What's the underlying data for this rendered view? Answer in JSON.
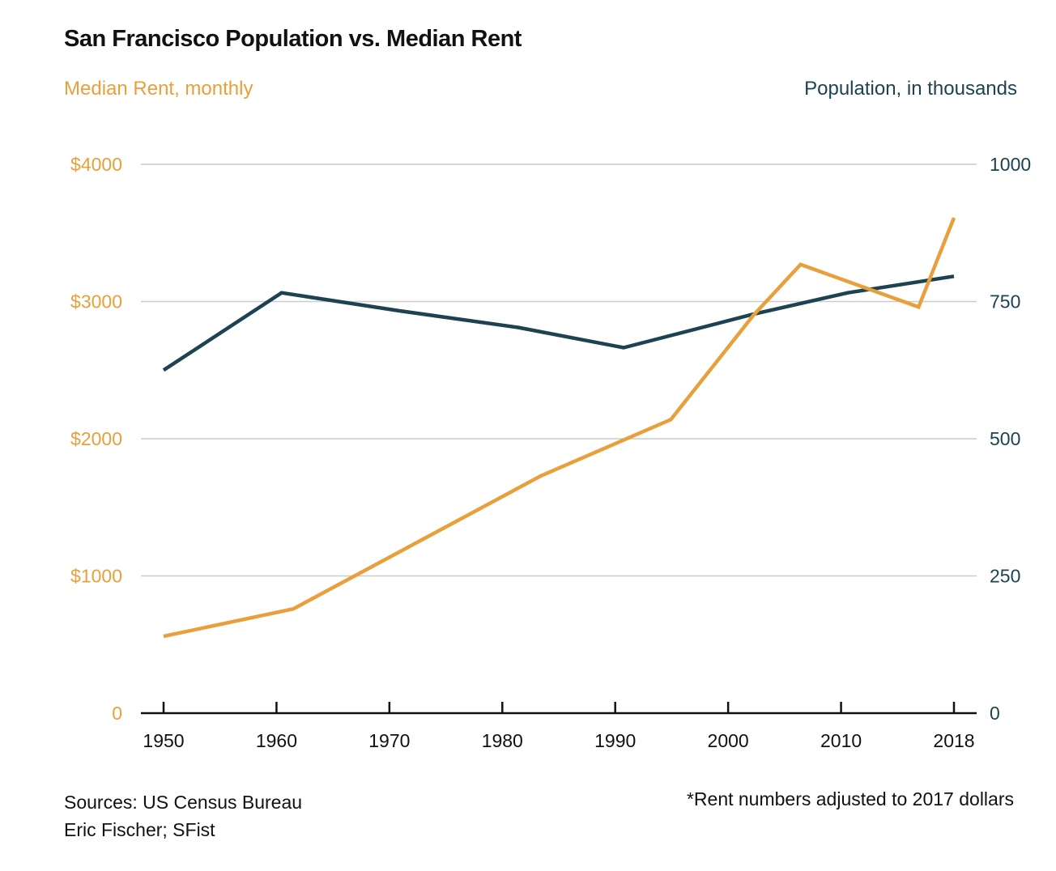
{
  "chart_data": {
    "type": "line",
    "title": "San Francisco Population vs. Median Rent",
    "ylabel_left": "Median Rent, monthly",
    "ylabel_right": "Population, in thousands",
    "x_ticks": [
      "1950",
      "1960",
      "1970",
      "1980",
      "1990",
      "2000",
      "2010",
      "2018"
    ],
    "xlim": [
      1950,
      2017
    ],
    "ylim_left": [
      0,
      4000
    ],
    "ylim_right": [
      0,
      1000
    ],
    "y_ticks_left": [
      {
        "value": 0,
        "label": "0"
      },
      {
        "value": 1000,
        "label": "$1000"
      },
      {
        "value": 2000,
        "label": "$2000"
      },
      {
        "value": 3000,
        "label": "$3000"
      },
      {
        "value": 4000,
        "label": "$4000"
      }
    ],
    "y_ticks_right": [
      {
        "value": 0,
        "label": "0"
      },
      {
        "value": 250,
        "label": "250"
      },
      {
        "value": 500,
        "label": "500"
      },
      {
        "value": 750,
        "label": "750"
      },
      {
        "value": 1000,
        "label": "1000"
      }
    ],
    "grid": "horizontal",
    "series": [
      {
        "axis": "right",
        "color": "#1d4252",
        "points": [
          [
            1950,
            625
          ],
          [
            1960,
            766
          ],
          [
            1970,
            733
          ],
          [
            1980,
            703
          ],
          [
            1989,
            666
          ],
          [
            2000,
            727
          ],
          [
            2008,
            766
          ],
          [
            2017,
            796
          ]
        ]
      },
      {
        "axis": "left",
        "color": "#e8a03c",
        "points": [
          [
            1950,
            560
          ],
          [
            1961,
            760
          ],
          [
            1982,
            1730
          ],
          [
            1993,
            2140
          ],
          [
            2000,
            2900
          ],
          [
            2004,
            3270
          ],
          [
            2014,
            2960
          ],
          [
            2017,
            3610
          ]
        ]
      }
    ]
  },
  "footer": {
    "sources_line1": "Sources: US Census Bureau",
    "sources_line2": "Eric Fischer; SFist",
    "note": "*Rent numbers adjusted to 2017 dollars"
  }
}
